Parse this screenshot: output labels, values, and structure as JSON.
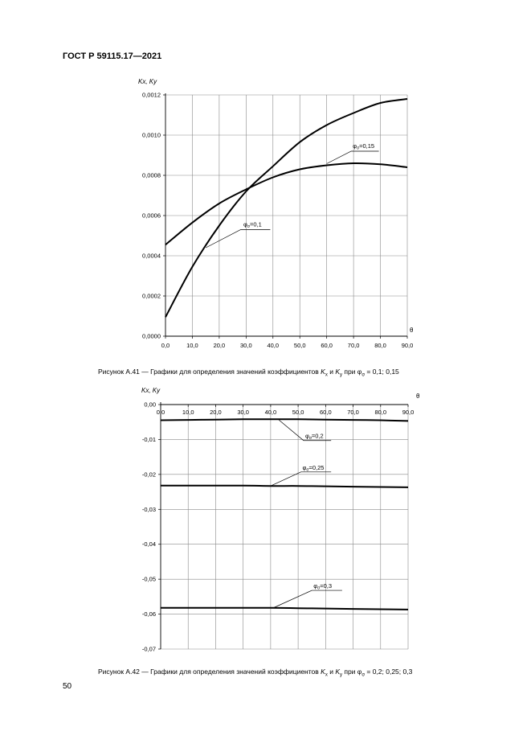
{
  "header": {
    "standard": "ГОСТ Р 59115.17—2021"
  },
  "page_number": "50",
  "captions": {
    "fig41": {
      "prefix": "Рисунок А.41 — Графики для определения значений коэффициентов ",
      "kx": "K",
      "kx_sub": "x",
      "and": " и ",
      "ky": "K",
      "ky_sub": "y",
      "mid": " при ",
      "phi": "φ",
      "phi_sub": "σ",
      "values": " = 0,1; 0,15"
    },
    "fig42": {
      "prefix": "Рисунок А.42 — Графики для определения значений коэффициентов ",
      "kx": "K",
      "kx_sub": "x",
      "and": " и ",
      "ky": "K",
      "ky_sub": "y",
      "mid": " при ",
      "phi": "φ",
      "phi_sub": "σ",
      "values": " = 0,2; 0,25; 0,3"
    }
  },
  "chart_data": [
    {
      "type": "line",
      "ylabel": "Kx, Ky",
      "xlabel": "θ",
      "x": [
        0,
        10,
        20,
        30,
        40,
        50,
        60,
        70,
        80,
        90
      ],
      "x_ticks": [
        "0,0",
        "10,0",
        "20,0",
        "30,0",
        "40,0",
        "50,0",
        "60,0",
        "70,0",
        "80,0",
        "90,0"
      ],
      "y_ticks": [
        {
          "value": 0.0,
          "label": "0,0000"
        },
        {
          "value": 0.0002,
          "label": "0,0002"
        },
        {
          "value": 0.0004,
          "label": "0,0004"
        },
        {
          "value": 0.0006,
          "label": "0,0006"
        },
        {
          "value": 0.0008,
          "label": "0,0008"
        },
        {
          "value": 0.001,
          "label": "0,0010"
        },
        {
          "value": 0.0012,
          "label": "0,0012"
        }
      ],
      "xlim": [
        0,
        90
      ],
      "ylim": [
        0,
        0.0012
      ],
      "grid": true,
      "series": [
        {
          "name": "φσ=0,1",
          "values": [
            9.5e-05,
            0.000345,
            0.00055,
            0.00072,
            0.000845,
            0.000965,
            0.00105,
            0.00111,
            0.00116,
            0.00118
          ]
        },
        {
          "name": "φσ=0,15",
          "values": [
            0.000455,
            0.000565,
            0.00066,
            0.00073,
            0.00079,
            0.00083,
            0.00085,
            0.00086,
            0.000855,
            0.00084
          ]
        }
      ],
      "annotations": [
        {
          "text": "φ",
          "sub": "σ",
          "rest": "=0,15",
          "series": "φσ=0,15"
        },
        {
          "text": "φ",
          "sub": "σ",
          "rest": "=0,1",
          "series": "φσ=0,1"
        }
      ]
    },
    {
      "type": "line",
      "ylabel": "Kx, Ky",
      "xlabel": "θ",
      "x": [
        0,
        10,
        20,
        30,
        40,
        50,
        60,
        70,
        80,
        90
      ],
      "x_ticks": [
        "0,0",
        "10,0",
        "20,0",
        "30,0",
        "40,0",
        "50,0",
        "60,0",
        "70,0",
        "80,0",
        "90,0"
      ],
      "y_ticks": [
        {
          "value": 0.0,
          "label": "0,00"
        },
        {
          "value": -0.01,
          "label": "-0,01"
        },
        {
          "value": -0.02,
          "label": "-0,02"
        },
        {
          "value": -0.03,
          "label": "-0,03"
        },
        {
          "value": -0.04,
          "label": "-0,04"
        },
        {
          "value": -0.05,
          "label": "-0,05"
        },
        {
          "value": -0.06,
          "label": "-0,06"
        },
        {
          "value": -0.07,
          "label": "-0,07"
        }
      ],
      "xlim": [
        0,
        90
      ],
      "ylim": [
        -0.07,
        0
      ],
      "grid": true,
      "series": [
        {
          "name": "φσ=0,2",
          "values": [
            -0.0045,
            -0.0044,
            -0.0043,
            -0.0042,
            -0.0042,
            -0.0042,
            -0.0043,
            -0.0044,
            -0.0045,
            -0.0047
          ]
        },
        {
          "name": "φσ=0,25",
          "values": [
            -0.0232,
            -0.0232,
            -0.0232,
            -0.0232,
            -0.0233,
            -0.0233,
            -0.0234,
            -0.0235,
            -0.0236,
            -0.0237
          ]
        },
        {
          "name": "φσ=0,3",
          "values": [
            -0.0582,
            -0.0582,
            -0.0582,
            -0.0582,
            -0.0582,
            -0.0583,
            -0.0584,
            -0.0585,
            -0.0586,
            -0.0587
          ]
        }
      ],
      "annotations": [
        {
          "text": "φ",
          "sub": "σ",
          "rest": "=0,2",
          "series": "φσ=0,2"
        },
        {
          "text": "φ",
          "sub": "σ",
          "rest": "=0,25",
          "series": "φσ=0,25"
        },
        {
          "text": "φ",
          "sub": "σ",
          "rest": "=0,3",
          "series": "φσ=0,3"
        }
      ]
    }
  ]
}
